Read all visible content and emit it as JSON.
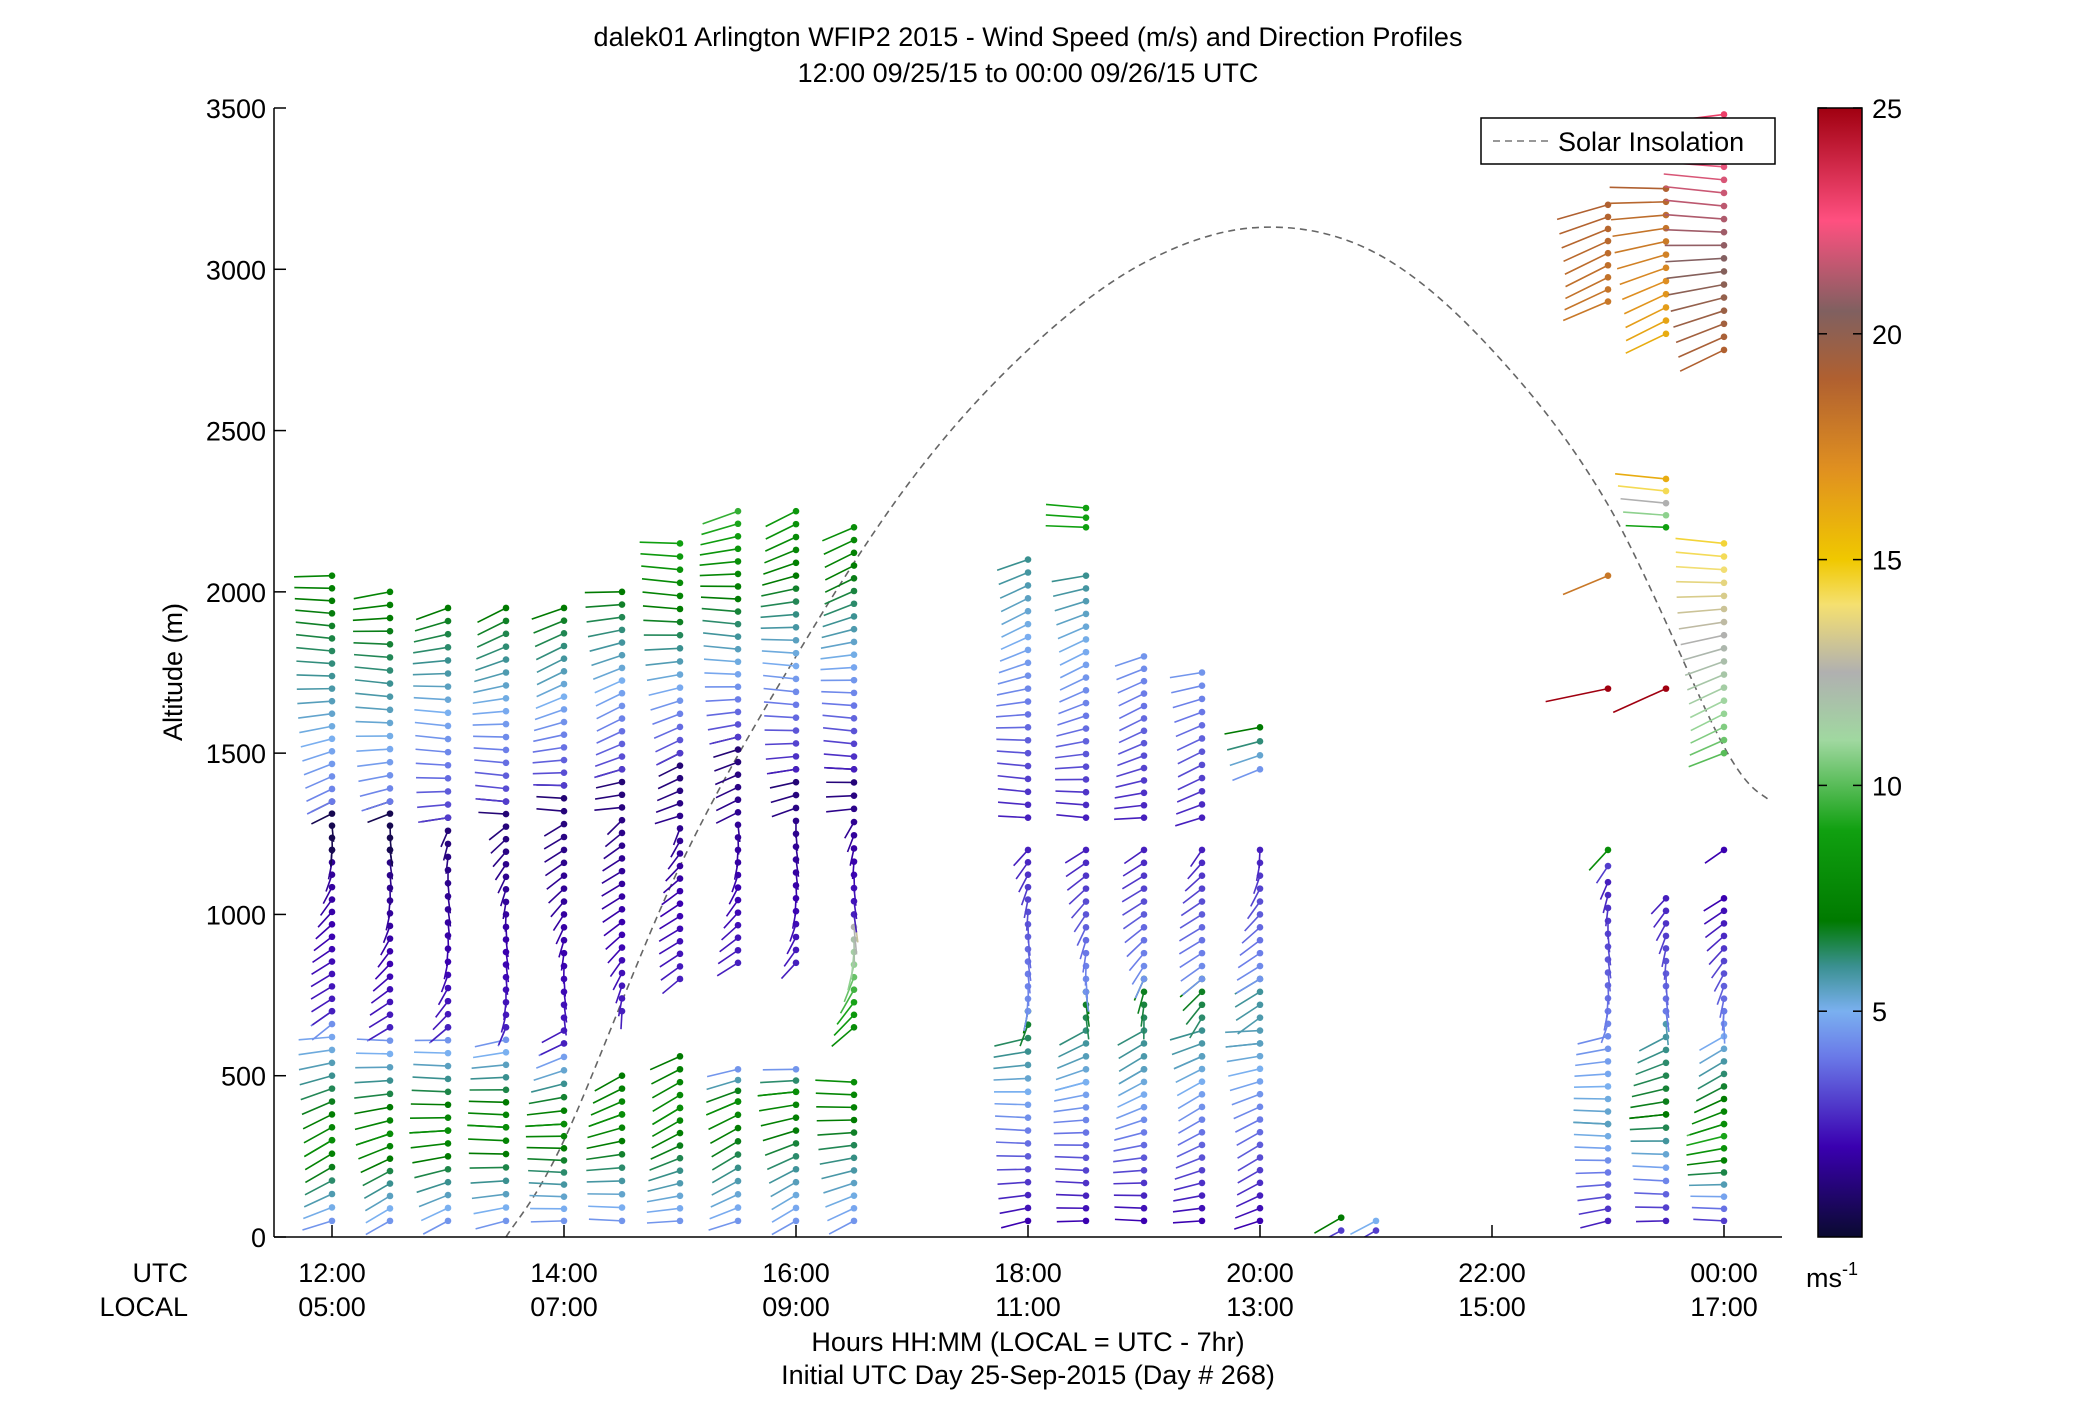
{
  "chart_data": {
    "type": "scatter",
    "title": "dalek01 Arlington WFIP2 2015 - Wind Speed (m/s) and Direction Profiles",
    "subtitle": "12:00 09/25/15 to 00:00 09/26/15  UTC",
    "xlabel": "Hours HH:MM  (LOCAL = UTC - 7hr)",
    "xlabel2": "Initial UTC Day 25-Sep-2015 (Day # 268)",
    "ylabel": "Altitude (m)",
    "ylim": [
      0,
      3500
    ],
    "xlim_hours": [
      11.5,
      24.5
    ],
    "yticks": [
      0,
      500,
      1000,
      1500,
      2000,
      2500,
      3000,
      3500
    ],
    "xrow_labels": {
      "utc": "UTC",
      "local": "LOCAL"
    },
    "xticks": [
      {
        "hour": 12,
        "utc": "12:00",
        "local": "05:00"
      },
      {
        "hour": 14,
        "utc": "14:00",
        "local": "07:00"
      },
      {
        "hour": 16,
        "utc": "16:00",
        "local": "09:00"
      },
      {
        "hour": 18,
        "utc": "18:00",
        "local": "11:00"
      },
      {
        "hour": 20,
        "utc": "20:00",
        "local": "13:00"
      },
      {
        "hour": 22,
        "utc": "22:00",
        "local": "15:00"
      },
      {
        "hour": 24,
        "utc": "00:00",
        "local": "17:00"
      }
    ],
    "legend": {
      "entry": "Solar Insolation",
      "placement": "top-right",
      "style": "dashed"
    },
    "colorbar": {
      "min": 0,
      "max": 25,
      "ticks": [
        5,
        10,
        15,
        20,
        25
      ],
      "unit_label": "ms",
      "unit_exponent": "-1",
      "colormap": [
        [
          0,
          "#0a0a30"
        ],
        [
          2,
          "#3a00b0"
        ],
        [
          4,
          "#6a7ae8"
        ],
        [
          5,
          "#7ab0f0"
        ],
        [
          6,
          "#3a9090"
        ],
        [
          7,
          "#007a00"
        ],
        [
          9,
          "#10a010"
        ],
        [
          11,
          "#a0d8a0"
        ],
        [
          12.5,
          "#b0b0b0"
        ],
        [
          14,
          "#f5e070"
        ],
        [
          15,
          "#f0c800"
        ],
        [
          17,
          "#e09020"
        ],
        [
          19,
          "#b06030"
        ],
        [
          20.5,
          "#806060"
        ],
        [
          22.5,
          "#ff5080"
        ],
        [
          25,
          "#a00010"
        ]
      ]
    },
    "solar_insolation_curve": {
      "hours": [
        13.5,
        14,
        15,
        16,
        17,
        18,
        19,
        20,
        21,
        22,
        23,
        24,
        24.4
      ],
      "altitude": [
        0,
        300,
        1150,
        1800,
        2350,
        2750,
        3020,
        3130,
        3050,
        2750,
        2270,
        1520,
        1350
      ]
    },
    "profiles": [
      {
        "t": 12.0,
        "segments": [
          {
            "from": 50,
            "to": 300,
            "speed": [
              4.5,
              8
            ]
          },
          {
            "from": 300,
            "to": 700,
            "speed": [
              8,
              4
            ]
          },
          {
            "from": 700,
            "to": 1200,
            "speed": [
              2.5,
              1.5
            ]
          },
          {
            "from": 1200,
            "to": 1350,
            "speed": [
              0.5,
              0.5
            ]
          },
          {
            "from": 1350,
            "to": 2050,
            "speed": [
              4,
              7.5
            ]
          }
        ]
      },
      {
        "t": 12.5,
        "segments": [
          {
            "from": 50,
            "to": 320,
            "speed": [
              4.5,
              8
            ]
          },
          {
            "from": 320,
            "to": 650,
            "speed": [
              8,
              4
            ]
          },
          {
            "from": 650,
            "to": 1200,
            "speed": [
              2.5,
              1.2
            ]
          },
          {
            "from": 1200,
            "to": 1350,
            "speed": [
              0.5,
              0.5
            ]
          },
          {
            "from": 1350,
            "to": 2000,
            "speed": [
              4,
              7.5
            ]
          }
        ]
      },
      {
        "t": 13.0,
        "segments": [
          {
            "from": 50,
            "to": 330,
            "speed": [
              4.5,
              8
            ]
          },
          {
            "from": 330,
            "to": 650,
            "speed": [
              8,
              4
            ]
          },
          {
            "from": 650,
            "to": 1300,
            "speed": [
              2.5,
              1
            ]
          },
          {
            "from": 1300,
            "to": 1950,
            "speed": [
              3,
              7
            ]
          }
        ]
      },
      {
        "t": 13.5,
        "segments": [
          {
            "from": 50,
            "to": 340,
            "speed": [
              4.5,
              8
            ]
          },
          {
            "from": 340,
            "to": 650,
            "speed": [
              8,
              4
            ]
          },
          {
            "from": 650,
            "to": 1350,
            "speed": [
              2.5,
              1
            ]
          },
          {
            "from": 1350,
            "to": 1950,
            "speed": [
              3,
              7
            ]
          }
        ]
      },
      {
        "t": 14.0,
        "segments": [
          {
            "from": 50,
            "to": 350,
            "speed": [
              4.5,
              8
            ]
          },
          {
            "from": 350,
            "to": 600,
            "speed": [
              8,
              4
            ]
          },
          {
            "from": 600,
            "to": 1400,
            "speed": [
              2.5,
              1
            ]
          },
          {
            "from": 1400,
            "to": 1950,
            "speed": [
              3,
              7
            ]
          }
        ]
      },
      {
        "t": 14.5,
        "segments": [
          {
            "from": 50,
            "to": 380,
            "speed": [
              4.5,
              8
            ]
          },
          {
            "from": 380,
            "to": 500,
            "speed": [
              8,
              7
            ]
          },
          {
            "from": 700,
            "to": 1450,
            "speed": [
              2.5,
              1
            ]
          },
          {
            "from": 1450,
            "to": 2000,
            "speed": [
              3,
              7
            ]
          }
        ]
      },
      {
        "t": 15.0,
        "segments": [
          {
            "from": 50,
            "to": 400,
            "speed": [
              4.5,
              8
            ]
          },
          {
            "from": 400,
            "to": 560,
            "speed": [
              8,
              7
            ]
          },
          {
            "from": 800,
            "to": 1500,
            "speed": [
              2.5,
              1
            ]
          },
          {
            "from": 1500,
            "to": 2150,
            "speed": [
              3,
              9
            ]
          }
        ]
      },
      {
        "t": 15.5,
        "segments": [
          {
            "from": 50,
            "to": 420,
            "speed": [
              4.5,
              8
            ]
          },
          {
            "from": 420,
            "to": 520,
            "speed": [
              8,
              4.5
            ]
          },
          {
            "from": 850,
            "to": 1550,
            "speed": [
              2.5,
              1
            ]
          },
          {
            "from": 1550,
            "to": 2250,
            "speed": [
              3,
              9.5
            ]
          }
        ]
      },
      {
        "t": 16.0,
        "segments": [
          {
            "from": 50,
            "to": 450,
            "speed": [
              4.5,
              8
            ]
          },
          {
            "from": 450,
            "to": 520,
            "speed": [
              8,
              4.5
            ]
          },
          {
            "from": 850,
            "to": 1450,
            "speed": [
              2.5,
              1
            ]
          },
          {
            "from": 1450,
            "to": 2250,
            "speed": [
              2.5,
              8.5
            ]
          }
        ]
      },
      {
        "t": 16.5,
        "segments": [
          {
            "from": 50,
            "to": 480,
            "speed": [
              4.5,
              8
            ]
          },
          {
            "from": 650,
            "to": 1000,
            "speed": [
              8,
              13
            ]
          },
          {
            "from": 1000,
            "to": 1450,
            "speed": [
              2.5,
              1
            ]
          },
          {
            "from": 1450,
            "to": 2200,
            "speed": [
              2.5,
              8
            ]
          }
        ]
      },
      {
        "t": 18.0,
        "segments": [
          {
            "from": 50,
            "to": 450,
            "speed": [
              2,
              5
            ]
          },
          {
            "from": 450,
            "to": 700,
            "speed": [
              5,
              7
            ]
          },
          {
            "from": 700,
            "to": 1200,
            "speed": [
              4.5,
              2.5
            ]
          },
          {
            "from": 1300,
            "to": 2100,
            "speed": [
              2.5,
              6
            ]
          }
        ]
      },
      {
        "t": 18.5,
        "segments": [
          {
            "from": 50,
            "to": 480,
            "speed": [
              2,
              5
            ]
          },
          {
            "from": 480,
            "to": 760,
            "speed": [
              5,
              7
            ]
          },
          {
            "from": 760,
            "to": 1200,
            "speed": [
              4.5,
              2.5
            ]
          },
          {
            "from": 1300,
            "to": 2050,
            "speed": [
              2.5,
              6
            ]
          },
          {
            "from": 2200,
            "to": 2260,
            "speed": [
              9,
              9
            ]
          }
        ]
      },
      {
        "t": 19.0,
        "segments": [
          {
            "from": 50,
            "to": 520,
            "speed": [
              2,
              5.5
            ]
          },
          {
            "from": 520,
            "to": 800,
            "speed": [
              5.5,
              7
            ]
          },
          {
            "from": 800,
            "to": 1200,
            "speed": [
              4.5,
              2.5
            ]
          },
          {
            "from": 1300,
            "to": 1800,
            "speed": [
              2.5,
              4.5
            ]
          }
        ]
      },
      {
        "t": 19.5,
        "segments": [
          {
            "from": 50,
            "to": 560,
            "speed": [
              2,
              5.5
            ]
          },
          {
            "from": 560,
            "to": 800,
            "speed": [
              5.5,
              7
            ]
          },
          {
            "from": 800,
            "to": 1200,
            "speed": [
              4.5,
              2.5
            ]
          },
          {
            "from": 1300,
            "to": 1750,
            "speed": [
              2.5,
              4.5
            ]
          }
        ]
      },
      {
        "t": 20.0,
        "segments": [
          {
            "from": 50,
            "to": 600,
            "speed": [
              2,
              5.5
            ]
          },
          {
            "from": 600,
            "to": 800,
            "speed": [
              5.5,
              6
            ]
          },
          {
            "from": 800,
            "to": 1200,
            "speed": [
              4.5,
              2.5
            ]
          },
          {
            "from": 1450,
            "to": 1580,
            "speed": [
              4.5,
              7
            ]
          }
        ]
      },
      {
        "t": 20.7,
        "segments": [
          {
            "from": 20,
            "to": 60,
            "speed": [
              3,
              7
            ]
          }
        ]
      },
      {
        "t": 21.0,
        "segments": [
          {
            "from": 20,
            "to": 50,
            "speed": [
              3,
              5
            ]
          }
        ]
      },
      {
        "t": 23.0,
        "segments": [
          {
            "from": 50,
            "to": 350,
            "speed": [
              2.5,
              5.5
            ]
          },
          {
            "from": 350,
            "to": 700,
            "speed": [
              5.5,
              4
            ]
          },
          {
            "from": 700,
            "to": 1100,
            "speed": [
              4,
              2.5
            ]
          },
          {
            "from": 1150,
            "to": 1200,
            "speed": [
              3,
              8
            ]
          },
          {
            "from": 1700,
            "to": 1700,
            "speed": [
              25,
              25
            ]
          },
          {
            "from": 2050,
            "to": 2050,
            "speed": [
              18,
              18
            ]
          },
          {
            "from": 2900,
            "to": 3200,
            "speed": [
              18,
              19
            ]
          }
        ]
      },
      {
        "t": 23.5,
        "segments": [
          {
            "from": 50,
            "to": 380,
            "speed": [
              2.5,
              7
            ]
          },
          {
            "from": 380,
            "to": 700,
            "speed": [
              7,
              5.5
            ]
          },
          {
            "from": 700,
            "to": 1050,
            "speed": [
              4,
              2.5
            ]
          },
          {
            "from": 1700,
            "to": 1700,
            "speed": [
              25,
              25
            ]
          },
          {
            "from": 2200,
            "to": 2350,
            "speed": [
              9,
              16
            ]
          },
          {
            "from": 2800,
            "to": 3250,
            "speed": [
              16,
              19
            ]
          }
        ]
      },
      {
        "t": 24.0,
        "segments": [
          {
            "from": 50,
            "to": 350,
            "speed": [
              3,
              10
            ]
          },
          {
            "from": 350,
            "to": 700,
            "speed": [
              8,
              4
            ]
          },
          {
            "from": 700,
            "to": 1050,
            "speed": [
              4,
              2
            ]
          },
          {
            "from": 1200,
            "to": 1200,
            "speed": [
              2,
              2
            ]
          },
          {
            "from": 1500,
            "to": 2150,
            "speed": [
              10,
              14.5
            ]
          },
          {
            "from": 2750,
            "to": 3480,
            "speed": [
              19,
              23
            ]
          }
        ]
      }
    ]
  }
}
